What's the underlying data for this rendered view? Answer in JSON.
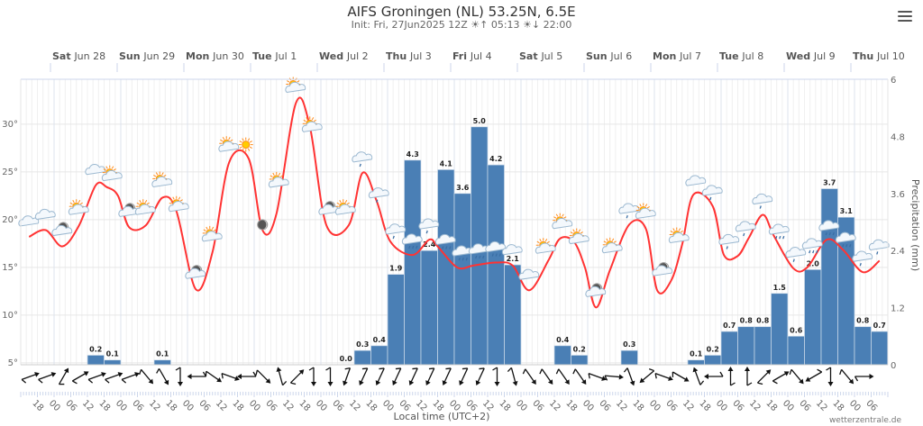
{
  "header": {
    "title": "AIFS Groningen (NL) 53.25N, 6.5E",
    "init": "Init: Fri, 27Jun2025 12Z",
    "sunrise": "05:13",
    "sunset": "22:00",
    "sunrise_icon": "sunrise-icon",
    "sunset_icon": "sunset-icon",
    "menu_icon": "hamburger-menu-icon"
  },
  "credit": "wetterzentrale.de",
  "chart_data": {
    "type": "bar+line",
    "xlabel": "Local time (UTC+2)",
    "ylabel_left": "",
    "ylabel_right": "Precipitation (mm)",
    "x_range": [
      "06-27 12",
      "07-10 12"
    ],
    "ylim_left": [
      4.8,
      34.7
    ],
    "ylim_right": [
      0,
      6
    ],
    "yticks_left": [
      "5°",
      "10°",
      "15°",
      "20°",
      "25°",
      "30°"
    ],
    "yticks_right": [
      "0",
      "1.2",
      "2.4",
      "3.6",
      "4.8",
      "6"
    ],
    "grid": true,
    "days": [
      {
        "time": "06-28 00",
        "weekday": "Sat",
        "date": "Jun 28"
      },
      {
        "time": "06-29 00",
        "weekday": "Sun",
        "date": "Jun 29"
      },
      {
        "time": "06-30 00",
        "weekday": "Mon",
        "date": "Jun 30"
      },
      {
        "time": "07-01 00",
        "weekday": "Tue",
        "date": "Jul 1"
      },
      {
        "time": "07-02 00",
        "weekday": "Wed",
        "date": "Jul 2"
      },
      {
        "time": "07-03 00",
        "weekday": "Thu",
        "date": "Jul 3"
      },
      {
        "time": "07-04 00",
        "weekday": "Fri",
        "date": "Jul 4"
      },
      {
        "time": "07-05 00",
        "weekday": "Sat",
        "date": "Jul 5"
      },
      {
        "time": "07-06 00",
        "weekday": "Sun",
        "date": "Jul 6"
      },
      {
        "time": "07-07 00",
        "weekday": "Mon",
        "date": "Jul 7"
      },
      {
        "time": "07-08 00",
        "weekday": "Tue",
        "date": "Jul 8"
      },
      {
        "time": "07-09 00",
        "weekday": "Wed",
        "date": "Jul 9"
      },
      {
        "time": "07-10 00",
        "weekday": "Thu",
        "date": "Jul 10"
      }
    ],
    "hour_ticks": [
      "18",
      "00",
      "06",
      "12"
    ],
    "temperature": {
      "color": "#ff3333",
      "points": [
        [
          "06-27 15",
          18.2
        ],
        [
          "06-27 21",
          18.9
        ],
        [
          "06-28 03",
          17.2
        ],
        [
          "06-28 09",
          19.4
        ],
        [
          "06-28 15",
          23.6
        ],
        [
          "06-28 19",
          23.4
        ],
        [
          "06-28 23",
          22.5
        ],
        [
          "06-29 03",
          19.2
        ],
        [
          "06-29 09",
          19.4
        ],
        [
          "06-29 15",
          22.3
        ],
        [
          "06-29 20",
          20.9
        ],
        [
          "06-30 03",
          12.7
        ],
        [
          "06-30 09",
          16.6
        ],
        [
          "06-30 15",
          26.0
        ],
        [
          "06-30 22",
          26.4
        ],
        [
          "07-01 03",
          18.9
        ],
        [
          "07-01 08",
          20.6
        ],
        [
          "07-01 15",
          32.2
        ],
        [
          "07-01 20",
          29.8
        ],
        [
          "07-02 02",
          19.4
        ],
        [
          "07-02 10",
          19.4
        ],
        [
          "07-02 15",
          24.9
        ],
        [
          "07-02 20",
          22.0
        ],
        [
          "07-03 01",
          17.7
        ],
        [
          "07-03 09",
          16.3
        ],
        [
          "07-03 15",
          17.9
        ],
        [
          "07-03 18",
          17.2
        ],
        [
          "07-04 01",
          15.0
        ],
        [
          "07-04 07",
          15.2
        ],
        [
          "07-04 15",
          15.5
        ],
        [
          "07-04 21",
          15.2
        ],
        [
          "07-05 03",
          12.6
        ],
        [
          "07-05 10",
          15.8
        ],
        [
          "07-05 14",
          18.0
        ],
        [
          "07-05 19",
          17.7
        ],
        [
          "07-05 23",
          15.0
        ],
        [
          "07-06 03",
          10.8
        ],
        [
          "07-06 08",
          14.7
        ],
        [
          "07-06 15",
          19.5
        ],
        [
          "07-06 21",
          19.0
        ],
        [
          "07-07 01",
          12.6
        ],
        [
          "07-07 06",
          13.6
        ],
        [
          "07-07 10",
          17.4
        ],
        [
          "07-07 14",
          22.6
        ],
        [
          "07-07 21",
          21.4
        ],
        [
          "07-08 01",
          16.3
        ],
        [
          "07-08 06",
          16.2
        ],
        [
          "07-08 10",
          18.1
        ],
        [
          "07-08 15",
          20.5
        ],
        [
          "07-08 19",
          18.3
        ],
        [
          "07-09 02",
          14.9
        ],
        [
          "07-09 07",
          15.0
        ],
        [
          "07-09 14",
          17.9
        ],
        [
          "07-09 20",
          16.8
        ],
        [
          "07-10 03",
          14.5
        ],
        [
          "07-10 09",
          15.7
        ]
      ]
    },
    "precipitation": {
      "color": "#4a7fb5",
      "bars": [
        {
          "start": "06-28 12",
          "value": 0.2
        },
        {
          "start": "06-28 18",
          "value": 0.1
        },
        {
          "start": "06-29 12",
          "value": 0.1
        },
        {
          "start": "07-02 06",
          "value": 0.0
        },
        {
          "start": "07-02 12",
          "value": 0.3
        },
        {
          "start": "07-02 18",
          "value": 0.4
        },
        {
          "start": "07-03 00",
          "value": 1.9
        },
        {
          "start": "07-03 06",
          "value": 4.3
        },
        {
          "start": "07-03 12",
          "value": 2.4
        },
        {
          "start": "07-03 18",
          "value": 4.1
        },
        {
          "start": "07-04 00",
          "value": 3.6
        },
        {
          "start": "07-04 06",
          "value": 5.0
        },
        {
          "start": "07-04 12",
          "value": 4.2
        },
        {
          "start": "07-04 18",
          "value": 2.1
        },
        {
          "start": "07-05 12",
          "value": 0.4
        },
        {
          "start": "07-05 18",
          "value": 0.2
        },
        {
          "start": "07-06 12",
          "value": 0.3
        },
        {
          "start": "07-07 12",
          "value": 0.1
        },
        {
          "start": "07-07 18",
          "value": 0.2
        },
        {
          "start": "07-08 00",
          "value": 0.7
        },
        {
          "start": "07-08 06",
          "value": 0.8
        },
        {
          "start": "07-08 12",
          "value": 0.8
        },
        {
          "start": "07-08 18",
          "value": 1.5
        },
        {
          "start": "07-09 00",
          "value": 0.6
        },
        {
          "start": "07-09 06",
          "value": 2.0
        },
        {
          "start": "07-09 12",
          "value": 3.7
        },
        {
          "start": "07-09 18",
          "value": 3.1
        },
        {
          "start": "07-10 00",
          "value": 0.8
        },
        {
          "start": "07-10 06",
          "value": 0.7
        }
      ]
    },
    "wind_arrows": {
      "first": "06-27 18",
      "step_hours": 6,
      "headings_deg": [
        70,
        70,
        30,
        60,
        70,
        70,
        70,
        140,
        150,
        180,
        270,
        125,
        110,
        270,
        135,
        345,
        45,
        180,
        180,
        200,
        205,
        205,
        205,
        205,
        205,
        205,
        205,
        205,
        180,
        165,
        145,
        145,
        145,
        145,
        110,
        95,
        160,
        230,
        110,
        120,
        340,
        270,
        0,
        0,
        45,
        60,
        140,
        240,
        180,
        140,
        90
      ]
    },
    "weather_icons": [
      [
        "06-27 15",
        "cloud"
      ],
      [
        "06-27 21",
        "cloud"
      ],
      [
        "06-28 03",
        "moon-cloud"
      ],
      [
        "06-28 09",
        "sun-cloud"
      ],
      [
        "06-28 15",
        "cloud"
      ],
      [
        "06-28 21",
        "sun-cloud"
      ],
      [
        "06-29 03",
        "moon-cloud"
      ],
      [
        "06-29 09",
        "sun-cloud"
      ],
      [
        "06-29 15",
        "sun-cloud"
      ],
      [
        "06-29 21",
        "sun-cloud"
      ],
      [
        "06-30 03",
        "moon-cloud"
      ],
      [
        "06-30 09",
        "sun-cloud"
      ],
      [
        "06-30 15",
        "sun-cloud"
      ],
      [
        "06-30 21",
        "sun"
      ],
      [
        "07-01 03",
        "moon"
      ],
      [
        "07-01 09",
        "sun-cloud"
      ],
      [
        "07-01 15",
        "sun-cloud"
      ],
      [
        "07-01 21",
        "sun-cloud"
      ],
      [
        "07-02 03",
        "moon-cloud"
      ],
      [
        "07-02 09",
        "sun-cloud"
      ],
      [
        "07-02 15",
        "rain"
      ],
      [
        "07-02 21",
        "rain"
      ],
      [
        "07-03 03",
        "rain"
      ],
      [
        "07-03 09",
        "heavy-rain"
      ],
      [
        "07-03 15",
        "rain"
      ],
      [
        "07-03 21",
        "heavy-rain"
      ],
      [
        "07-04 03",
        "heavy-rain"
      ],
      [
        "07-04 09",
        "heavy-rain"
      ],
      [
        "07-04 15",
        "heavy-rain"
      ],
      [
        "07-04 21",
        "cloud"
      ],
      [
        "07-05 03",
        "cloud"
      ],
      [
        "07-05 09",
        "sun-cloud"
      ],
      [
        "07-05 15",
        "sun-cloud"
      ],
      [
        "07-05 21",
        "sun-cloud"
      ],
      [
        "07-06 03",
        "moon-cloud"
      ],
      [
        "07-06 09",
        "sun-cloud"
      ],
      [
        "07-06 15",
        "rain"
      ],
      [
        "07-06 21",
        "sun-cloud"
      ],
      [
        "07-07 03",
        "moon-cloud"
      ],
      [
        "07-07 09",
        "sun-cloud"
      ],
      [
        "07-07 15",
        "cloud"
      ],
      [
        "07-07 21",
        "rain"
      ],
      [
        "07-08 03",
        "rain"
      ],
      [
        "07-08 09",
        "rain"
      ],
      [
        "07-08 15",
        "rain"
      ],
      [
        "07-08 21",
        "heavy-rain"
      ],
      [
        "07-09 03",
        "rain"
      ],
      [
        "07-09 09",
        "heavy-rain"
      ],
      [
        "07-09 15",
        "heavy-rain"
      ],
      [
        "07-09 21",
        "heavy-rain"
      ],
      [
        "07-10 03",
        "rain"
      ],
      [
        "07-10 09",
        "rain"
      ]
    ]
  }
}
